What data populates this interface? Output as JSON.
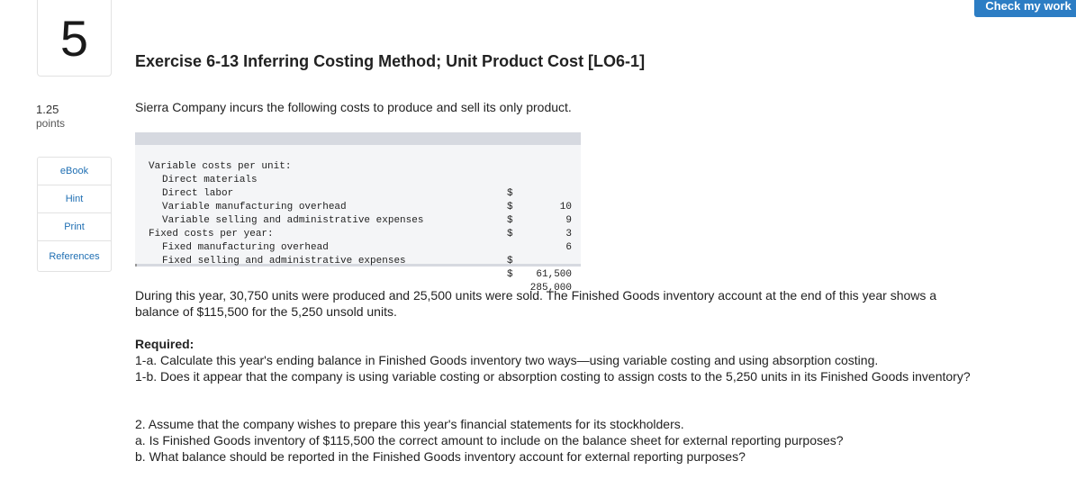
{
  "question": {
    "number": "5",
    "points_value": "1.25",
    "points_label": "points"
  },
  "side_links": [
    "eBook",
    "Hint",
    "Print",
    "References"
  ],
  "check_button": "Check my work",
  "title": "Exercise 6-13 Inferring Costing Method; Unit Product Cost [LO6-1]",
  "intro": "Sierra Company incurs the following costs to produce and sell its only product.",
  "cost_table": {
    "variable_header": "Variable costs per unit:",
    "variable_rows": [
      {
        "label": "Direct materials",
        "currency": "$",
        "amount": "10"
      },
      {
        "label": "Direct labor",
        "currency": "$",
        "amount": "9"
      },
      {
        "label": "Variable manufacturing overhead",
        "currency": "$",
        "amount": "3"
      },
      {
        "label": "Variable selling and administrative expenses",
        "currency": "$",
        "amount": "6"
      }
    ],
    "fixed_header": "Fixed costs per year:",
    "fixed_rows": [
      {
        "label": "Fixed manufacturing overhead",
        "currency": "$",
        "amount": "61,500"
      },
      {
        "label": "Fixed selling and administrative expenses",
        "currency": "$",
        "amount": "285,000"
      }
    ]
  },
  "paragraph1": "During this year, 30,750 units were produced and 25,500 units were sold. The Finished Goods inventory account at the end of this year shows a balance of $115,500 for the 5,250 unsold units.",
  "required": {
    "heading": "Required:",
    "q1a": "1-a. Calculate this year's ending balance in Finished Goods inventory two ways—using variable costing and using absorption costing.",
    "q1b": "1-b. Does it appear that the company is using variable costing or absorption costing to assign costs to the 5,250 units in its Finished Goods inventory?",
    "q2": "2. Assume that the company wishes to prepare this year's financial statements for its stockholders.",
    "q2a": "a. Is Finished Goods inventory of $115,500 the correct amount to include on the balance sheet for external reporting purposes?",
    "q2b": "b. What balance should be reported in the Finished Goods inventory account for external reporting purposes?"
  }
}
